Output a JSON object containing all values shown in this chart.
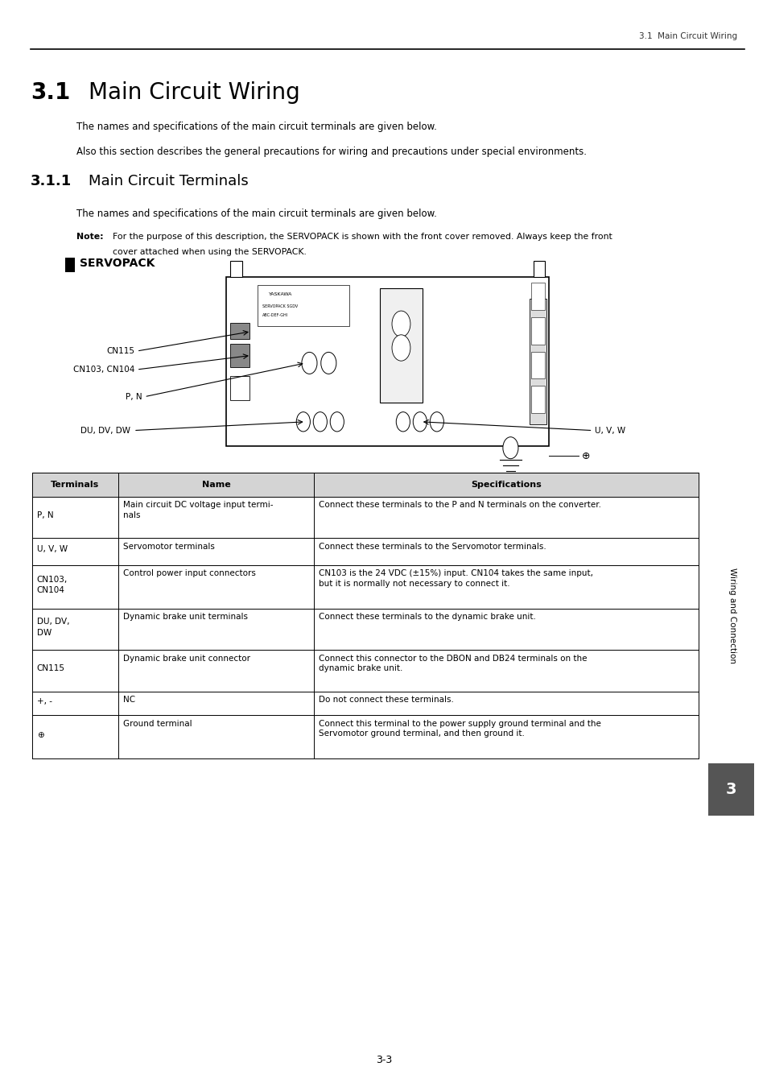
{
  "page_header": "3.1  Main Circuit Wiring",
  "section_title": "3.1",
  "section_title_text": "Main Circuit Wiring",
  "para1": "The names and specifications of the main circuit terminals are given below.",
  "para2": "Also this section describes the general precautions for wiring and precautions under special environments.",
  "subsection_num": "3.1.1",
  "subsection_title": "Main Circuit Terminals",
  "para3": "The names and specifications of the main circuit terminals are given below.",
  "note_label": "Note:",
  "note_text": "For the purpose of this description, the SERVOPACK is shown with the front cover removed. Always keep the front",
  "note_text2": "cover attached when using the SERVOPACK.",
  "sidebar_text": "Wiring and Connection",
  "sidebar_num": "3",
  "page_num": "3-3",
  "table_header": [
    "Terminals",
    "Name",
    "Specifications"
  ],
  "table_rows": [
    [
      "P, N",
      "Main circuit DC voltage input termi-\nnals",
      "Connect these terminals to the P and N terminals on the converter."
    ],
    [
      "U, V, W",
      "Servomotor terminals",
      "Connect these terminals to the Servomotor terminals."
    ],
    [
      "CN103,\nCN104",
      "Control power input connectors",
      "CN103 is the 24 VDC (±15%) input. CN104 takes the same input,\nbut it is normally not necessary to connect it."
    ],
    [
      "DU, DV,\nDW",
      "Dynamic brake unit terminals",
      "Connect these terminals to the dynamic brake unit."
    ],
    [
      "CN115",
      "Dynamic brake unit connector",
      "Connect this connector to the DBON and DB24 terminals on the\ndynamic brake unit."
    ],
    [
      "+, -",
      "NC",
      "Do not connect these terminals."
    ],
    [
      "⊕",
      "Ground terminal",
      "Connect this terminal to the power supply ground terminal and the\nServomotor ground terminal, and then ground it."
    ]
  ],
  "bg_color": "#ffffff"
}
